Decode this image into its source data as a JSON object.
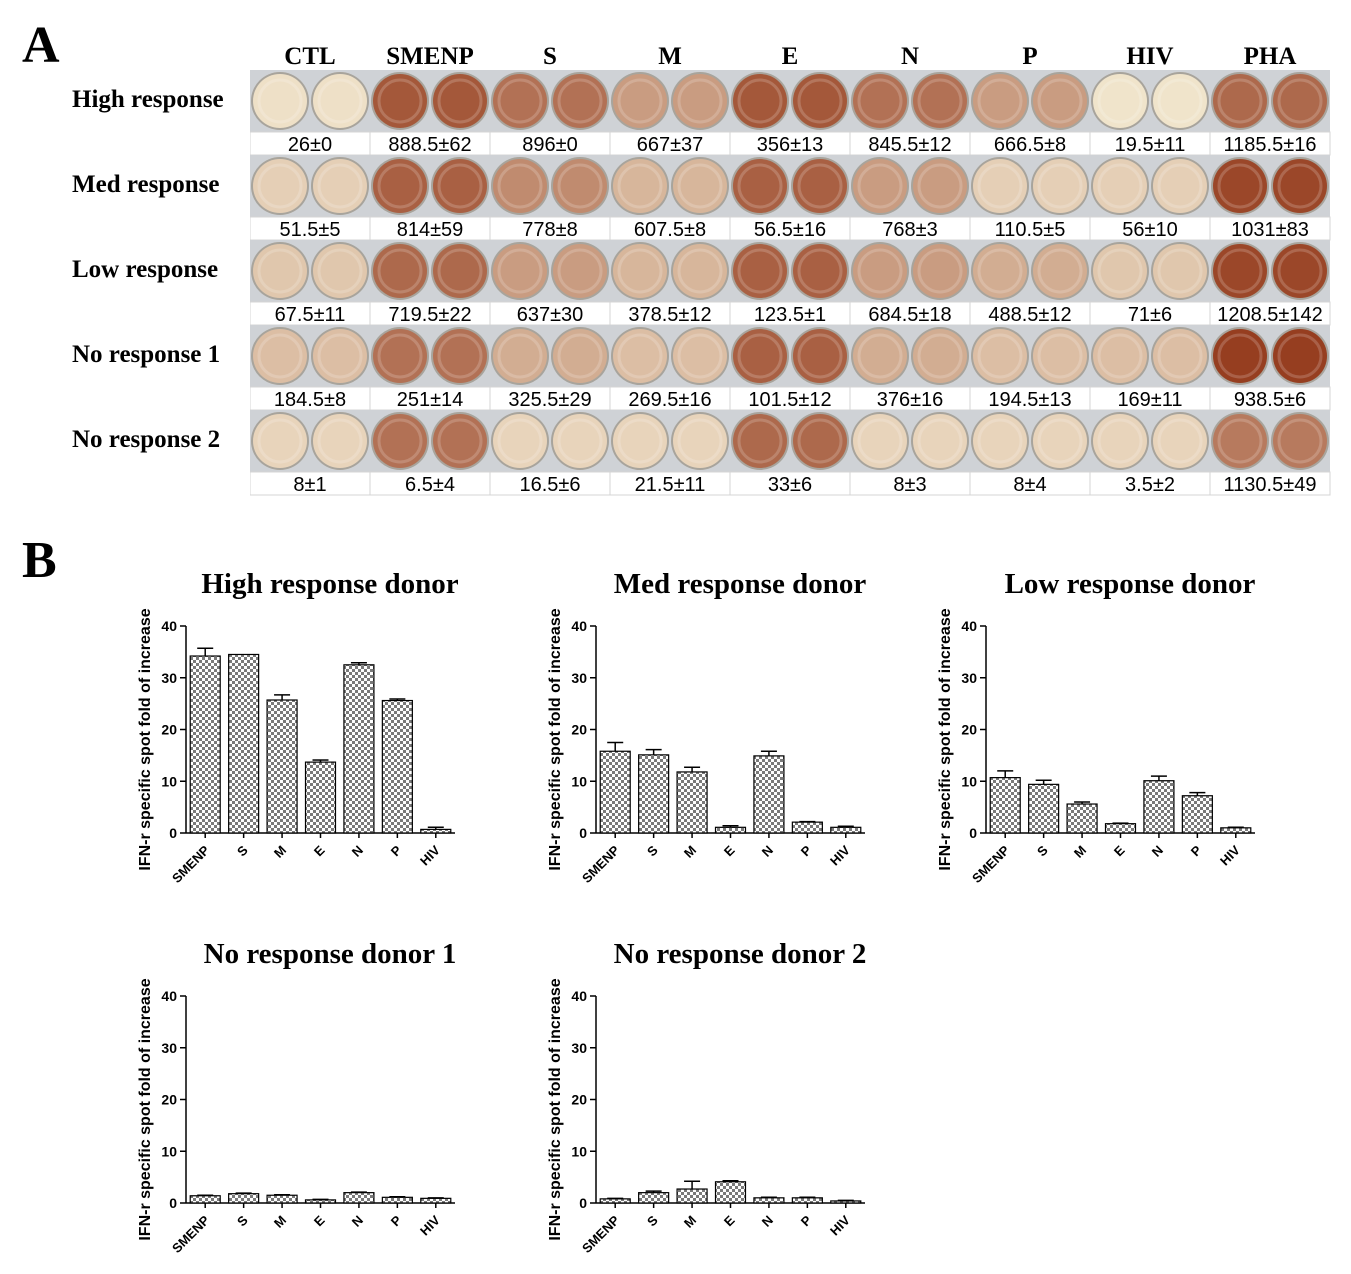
{
  "panel_a": {
    "label": "A",
    "columns": [
      "CTL",
      "SMENP",
      "S",
      "M",
      "E",
      "N",
      "P",
      "HIV",
      "PHA"
    ],
    "rows": [
      {
        "label": "High response",
        "counts": [
          "26±0",
          "888.5±62",
          "896±0",
          "667±37",
          "356±13",
          "845.5±12",
          "666.5±8",
          "19.5±11",
          "1185.5±16"
        ],
        "intensity": [
          0.05,
          0.85,
          0.7,
          0.45,
          0.85,
          0.7,
          0.45,
          0.03,
          0.75
        ]
      },
      {
        "label": "Med response",
        "counts": [
          "51.5±5",
          "814±59",
          "778±8",
          "607.5±8",
          "56.5±16",
          "768±3",
          "110.5±5",
          "56±10",
          "1031±83"
        ],
        "intensity": [
          0.15,
          0.8,
          0.55,
          0.3,
          0.8,
          0.45,
          0.15,
          0.15,
          0.95
        ]
      },
      {
        "label": "Low response",
        "counts": [
          "67.5±11",
          "719.5±22",
          "637±30",
          "378.5±12",
          "123.5±1",
          "684.5±18",
          "488.5±12",
          "71±6",
          "1208.5±142"
        ],
        "intensity": [
          0.2,
          0.75,
          0.45,
          0.3,
          0.8,
          0.45,
          0.35,
          0.2,
          0.95
        ]
      },
      {
        "label": "No response 1",
        "counts": [
          "184.5±8",
          "251±14",
          "325.5±29",
          "269.5±16",
          "101.5±12",
          "376±16",
          "194.5±13",
          "169±11",
          "938.5±6"
        ],
        "intensity": [
          0.25,
          0.7,
          0.35,
          0.25,
          0.8,
          0.35,
          0.25,
          0.25,
          1.0
        ]
      },
      {
        "label": "No response 2",
        "counts": [
          "8±1",
          "6.5±4",
          "16.5±6",
          "21.5±11",
          "33±6",
          "8±3",
          "8±4",
          "3.5±2",
          "1130.5±49"
        ],
        "intensity": [
          0.12,
          0.7,
          0.12,
          0.12,
          0.75,
          0.12,
          0.12,
          0.12,
          0.65
        ]
      }
    ]
  },
  "panel_b": {
    "label": "B"
  },
  "chart_data": [
    {
      "type": "bar",
      "title": "High response donor",
      "ylabel": "IFN-r specific spot fold of increase",
      "xlabel": "",
      "ylim": [
        0,
        40
      ],
      "yticks": [
        0,
        10,
        20,
        30,
        40
      ],
      "categories": [
        "SMENP",
        "S",
        "M",
        "E",
        "N",
        "P",
        "HIV"
      ],
      "values": [
        34.2,
        34.5,
        25.7,
        13.7,
        32.5,
        25.6,
        0.7
      ],
      "errors": [
        1.5,
        0,
        1.0,
        0.4,
        0.4,
        0.3,
        0.4
      ]
    },
    {
      "type": "bar",
      "title": "Med response donor",
      "ylabel": "IFN-r specific spot fold of increase",
      "xlabel": "",
      "ylim": [
        0,
        40
      ],
      "yticks": [
        0,
        10,
        20,
        30,
        40
      ],
      "categories": [
        "SMENP",
        "S",
        "M",
        "E",
        "N",
        "P",
        "HIV"
      ],
      "values": [
        15.8,
        15.1,
        11.8,
        1.1,
        14.9,
        2.1,
        1.1
      ],
      "errors": [
        1.7,
        1.0,
        0.9,
        0.3,
        0.9,
        0.1,
        0.2
      ]
    },
    {
      "type": "bar",
      "title": "Low response donor",
      "ylabel": "IFN-r specific spot fold of increase",
      "xlabel": "",
      "ylim": [
        0,
        40
      ],
      "yticks": [
        0,
        10,
        20,
        30,
        40
      ],
      "categories": [
        "SMENP",
        "S",
        "M",
        "E",
        "N",
        "P",
        "HIV"
      ],
      "values": [
        10.7,
        9.4,
        5.6,
        1.8,
        10.1,
        7.2,
        1.0
      ],
      "errors": [
        1.3,
        0.8,
        0.4,
        0.1,
        0.9,
        0.6,
        0.1
      ]
    },
    {
      "type": "bar",
      "title": "No response donor 1",
      "ylabel": "IFN-r specific spot fold of increase",
      "xlabel": "",
      "ylim": [
        0,
        40
      ],
      "yticks": [
        0,
        10,
        20,
        30,
        40
      ],
      "categories": [
        "SMENP",
        "S",
        "M",
        "E",
        "N",
        "P",
        "HIV"
      ],
      "values": [
        1.4,
        1.8,
        1.5,
        0.6,
        2.0,
        1.1,
        0.9
      ],
      "errors": [
        0.1,
        0.1,
        0.1,
        0.1,
        0.1,
        0.1,
        0.1
      ]
    },
    {
      "type": "bar",
      "title": "No response donor 2",
      "ylabel": "IFN-r specific spot fold of increase",
      "xlabel": "",
      "ylim": [
        0,
        40
      ],
      "yticks": [
        0,
        10,
        20,
        30,
        40
      ],
      "categories": [
        "SMENP",
        "S",
        "M",
        "E",
        "N",
        "P",
        "HIV"
      ],
      "values": [
        0.8,
        2.0,
        2.7,
        4.1,
        1.0,
        1.0,
        0.4
      ],
      "errors": [
        0.1,
        0.3,
        1.5,
        0.2,
        0.1,
        0.1,
        0.1
      ]
    }
  ]
}
